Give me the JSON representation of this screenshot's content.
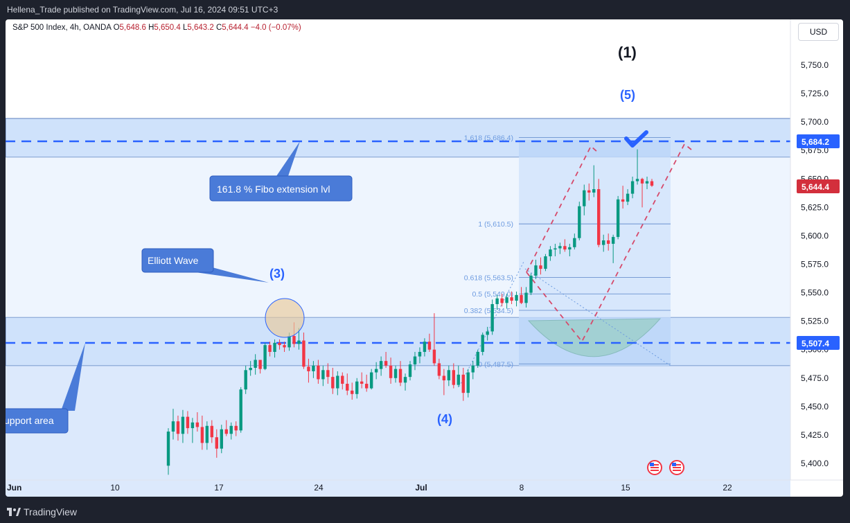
{
  "header": {
    "published_by": "Hellena_Trade published on TradingView.com, Jul 16, 2024 09:51 UTC+3"
  },
  "legend": {
    "symbol": "S&P 500 Index, 4h, OANDA",
    "o_label": "O",
    "o": "5,648.6",
    "h_label": "H",
    "h": "5,650.4",
    "l_label": "L",
    "l": "5,643.2",
    "c_label": "C",
    "c": "5,644.4",
    "change": "−4.0 (−0.07%)"
  },
  "currency_button": "USD",
  "footer": {
    "brand": "TradingView"
  },
  "colors": {
    "up": "#089981",
    "down": "#f23645",
    "zone_fill": "#cfe2fb",
    "zone_line": "#2962ff",
    "wave_text": "#2962ff",
    "callout_bg": "#4a7bd8",
    "fib_text": "#6d9be0",
    "channel": "#d64a6b",
    "price_label_blue": "#2962ff",
    "price_label_red": "#d32f3c"
  },
  "annotations": {
    "wave_1": "(1)",
    "wave_5": "(5)",
    "wave_3": "(3)",
    "wave_4": "(4)",
    "callout_fibo": "161.8 % Fibo extension lvl",
    "callout_elliott": "Elliott Wave",
    "callout_support": "upport area"
  },
  "price_labels": {
    "resistance": "5,684.2",
    "last": "5,644.4",
    "support": "5,507.4"
  },
  "fib_levels": [
    {
      "label": "1.618 (5,686.4)",
      "price": 5686.4
    },
    {
      "label": "1 (5,610.5)",
      "price": 5610.5
    },
    {
      "label": "0.618 (5,563.5)",
      "price": 5563.5
    },
    {
      "label": "0.5 (5,549.0)",
      "price": 5549.0
    },
    {
      "label": "0.382 (5,534.5)",
      "price": 5534.5
    },
    {
      "label": "0 (5,487.5)",
      "price": 5487.5
    }
  ],
  "chart_data": {
    "type": "candlestick",
    "title": "S&P 500 Index, 4h, OANDA",
    "ylim": [
      5387,
      5770
    ],
    "y_ticks": [
      "5,750.0",
      "5,725.0",
      "5,700.0",
      "5,675.0",
      "5,650.0",
      "5,625.0",
      "5,600.0",
      "5,575.0",
      "5,550.0",
      "5,525.0",
      "5,500.0",
      "5,475.0",
      "5,450.0",
      "5,425.0",
      "5,400.0"
    ],
    "x_ticks": [
      "Jun",
      "10",
      "17",
      "24",
      "Jul",
      "8",
      "15",
      "22"
    ],
    "horizontal_levels": [
      5684.2,
      5507.4
    ],
    "resistance_zone": [
      5670,
      5705
    ],
    "support_zone": [
      5487.5,
      5529
    ],
    "series": [
      {
        "ohlc": [
          [
            5398,
            5431,
            5390,
            5428
          ],
          [
            5428,
            5448,
            5421,
            5437
          ],
          [
            5437,
            5442,
            5420,
            5426
          ],
          [
            5426,
            5447,
            5418,
            5441
          ],
          [
            5441,
            5446,
            5426,
            5431
          ],
          [
            5431,
            5440,
            5418,
            5436
          ],
          [
            5436,
            5445,
            5428,
            5432
          ],
          [
            5432,
            5442,
            5412,
            5418
          ],
          [
            5418,
            5437,
            5412,
            5433
          ],
          [
            5433,
            5438,
            5418,
            5423
          ],
          [
            5423,
            5430,
            5405,
            5413
          ],
          [
            5413,
            5434,
            5409,
            5430
          ],
          [
            5430,
            5438,
            5424,
            5426
          ],
          [
            5426,
            5436,
            5421,
            5433
          ],
          [
            5433,
            5437,
            5424,
            5429
          ],
          [
            5429,
            5467,
            5427,
            5465
          ],
          [
            5465,
            5486,
            5461,
            5482
          ],
          [
            5482,
            5490,
            5477,
            5484
          ],
          [
            5484,
            5496,
            5478,
            5491
          ],
          [
            5491,
            5489,
            5479,
            5483
          ],
          [
            5483,
            5506,
            5482,
            5504
          ],
          [
            5504,
            5507,
            5494,
            5498
          ],
          [
            5498,
            5509,
            5493,
            5506
          ],
          [
            5506,
            5509,
            5500,
            5504
          ],
          [
            5504,
            5507,
            5498,
            5502
          ],
          [
            5502,
            5515,
            5499,
            5512
          ],
          [
            5512,
            5524,
            5502,
            5505
          ],
          [
            5505,
            5519,
            5500,
            5508
          ],
          [
            5508,
            5515,
            5483,
            5485
          ],
          [
            5485,
            5492,
            5471,
            5481
          ],
          [
            5481,
            5490,
            5475,
            5486
          ],
          [
            5486,
            5491,
            5470,
            5474
          ],
          [
            5474,
            5486,
            5468,
            5482
          ],
          [
            5482,
            5488,
            5470,
            5476
          ],
          [
            5476,
            5484,
            5461,
            5466
          ],
          [
            5466,
            5481,
            5460,
            5477
          ],
          [
            5477,
            5480,
            5465,
            5470
          ],
          [
            5470,
            5479,
            5460,
            5464
          ],
          [
            5464,
            5471,
            5456,
            5461
          ],
          [
            5461,
            5475,
            5457,
            5472
          ],
          [
            5472,
            5480,
            5466,
            5470
          ],
          [
            5470,
            5478,
            5463,
            5466
          ],
          [
            5466,
            5483,
            5465,
            5480
          ],
          [
            5480,
            5489,
            5474,
            5483
          ],
          [
            5483,
            5494,
            5477,
            5490
          ],
          [
            5490,
            5498,
            5484,
            5486
          ],
          [
            5486,
            5493,
            5470,
            5475
          ],
          [
            5475,
            5486,
            5471,
            5483
          ],
          [
            5483,
            5490,
            5468,
            5471
          ],
          [
            5471,
            5479,
            5464,
            5476
          ],
          [
            5476,
            5490,
            5473,
            5487
          ],
          [
            5487,
            5498,
            5482,
            5494
          ],
          [
            5494,
            5502,
            5488,
            5498
          ],
          [
            5498,
            5510,
            5494,
            5507
          ],
          [
            5507,
            5514,
            5498,
            5500
          ],
          [
            5500,
            5532,
            5486,
            5488
          ],
          [
            5488,
            5492,
            5474,
            5477
          ],
          [
            5477,
            5483,
            5460,
            5473
          ],
          [
            5473,
            5486,
            5468,
            5482
          ],
          [
            5482,
            5488,
            5466,
            5469
          ],
          [
            5469,
            5486,
            5467,
            5478
          ],
          [
            5478,
            5484,
            5455,
            5462
          ],
          [
            5462,
            5483,
            5458,
            5480
          ],
          [
            5480,
            5490,
            5474,
            5486
          ],
          [
            5486,
            5500,
            5484,
            5498
          ],
          [
            5498,
            5515,
            5495,
            5513
          ],
          [
            5513,
            5520,
            5508,
            5516
          ],
          [
            5516,
            5544,
            5513,
            5540
          ],
          [
            5540,
            5548,
            5535,
            5545
          ],
          [
            5545,
            5549,
            5538,
            5541
          ],
          [
            5541,
            5549,
            5536,
            5546
          ],
          [
            5546,
            5551,
            5540,
            5543
          ],
          [
            5543,
            5551,
            5538,
            5548
          ],
          [
            5548,
            5555,
            5540,
            5541
          ],
          [
            5541,
            5555,
            5537,
            5550
          ],
          [
            5550,
            5567,
            5548,
            5565
          ],
          [
            5565,
            5579,
            5562,
            5574
          ],
          [
            5574,
            5581,
            5566,
            5571
          ],
          [
            5571,
            5584,
            5569,
            5582
          ],
          [
            5582,
            5591,
            5578,
            5588
          ],
          [
            5588,
            5593,
            5582,
            5589
          ],
          [
            5589,
            5594,
            5584,
            5591
          ],
          [
            5591,
            5597,
            5586,
            5588
          ],
          [
            5588,
            5593,
            5582,
            5590
          ],
          [
            5590,
            5602,
            5588,
            5598
          ],
          [
            5598,
            5630,
            5596,
            5626
          ],
          [
            5626,
            5645,
            5618,
            5640
          ],
          [
            5640,
            5646,
            5631,
            5638
          ],
          [
            5638,
            5662,
            5634,
            5641
          ],
          [
            5641,
            5650,
            5590,
            5592
          ],
          [
            5592,
            5601,
            5586,
            5596
          ],
          [
            5596,
            5602,
            5587,
            5593
          ],
          [
            5593,
            5601,
            5576,
            5599
          ],
          [
            5599,
            5635,
            5597,
            5632
          ],
          [
            5632,
            5644,
            5624,
            5630
          ],
          [
            5630,
            5641,
            5627,
            5637
          ],
          [
            5637,
            5652,
            5633,
            5648
          ],
          [
            5648,
            5676,
            5645,
            5650
          ],
          [
            5650,
            5651,
            5625,
            5646
          ],
          [
            5646,
            5652,
            5641,
            5648
          ],
          [
            5648,
            5650,
            5643,
            5644
          ]
        ]
      }
    ]
  }
}
